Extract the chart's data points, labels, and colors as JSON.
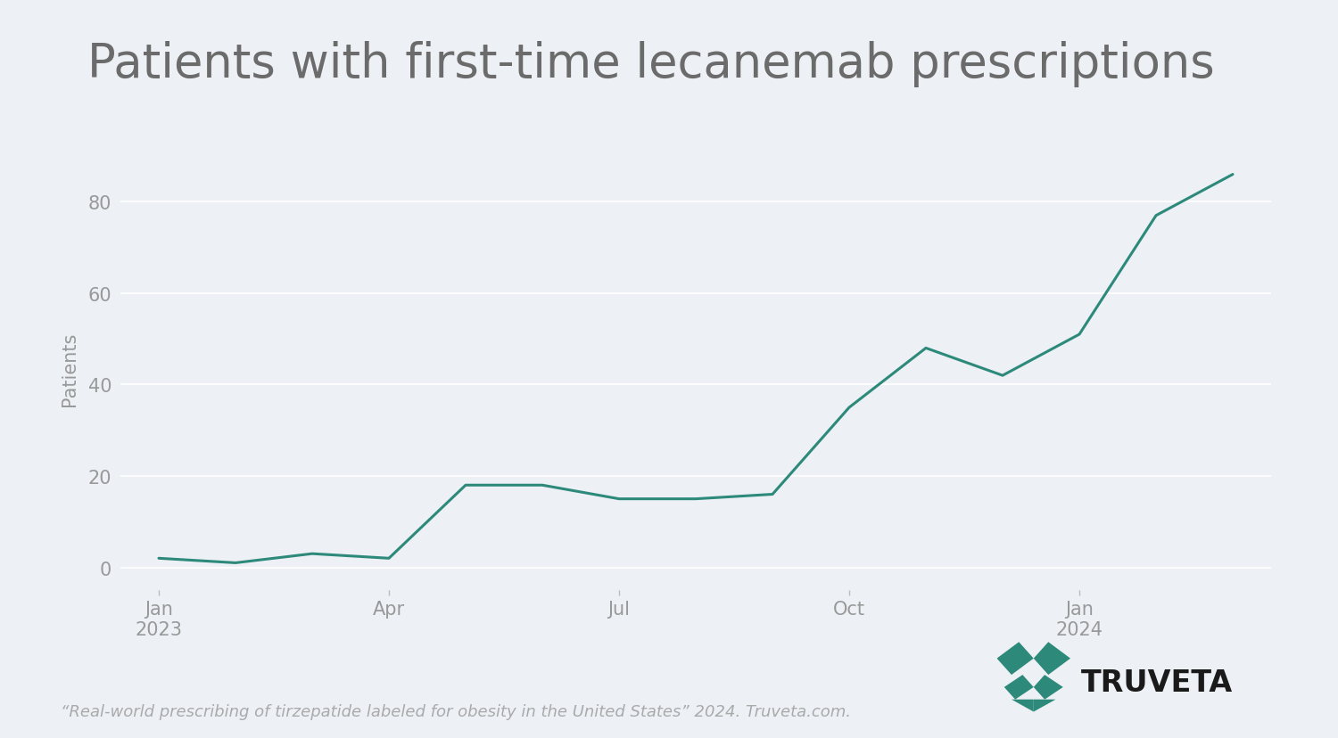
{
  "title": "Patients with first-time lecanemab prescriptions",
  "ylabel": "Patients",
  "background_color": "#edf0f5",
  "line_color": "#2d8a7a",
  "line_width": 2.2,
  "title_fontsize": 38,
  "title_color": "#6b6b6b",
  "ylabel_fontsize": 15,
  "tick_fontsize": 15,
  "tick_color": "#999999",
  "footnote": "“Real-world prescribing of tirzepatide labeled for obesity in the United States” 2024. Truveta.com.",
  "footnote_fontsize": 13,
  "footnote_color": "#aaaaaa",
  "x_months": [
    0,
    1,
    2,
    3,
    4,
    5,
    6,
    7,
    8,
    9,
    10,
    11,
    12,
    13,
    14
  ],
  "y_values": [
    2,
    1,
    3,
    2,
    18,
    18,
    15,
    15,
    16,
    35,
    48,
    42,
    51,
    77,
    86
  ],
  "x_tick_positions": [
    0,
    3,
    6,
    9,
    12
  ],
  "x_tick_labels_line1": [
    "Jan",
    "Apr",
    "Jul",
    "Oct",
    "Jan"
  ],
  "x_tick_labels_line2": [
    "2023",
    "",
    "",
    "",
    "2024"
  ],
  "ytick_values": [
    0,
    20,
    40,
    60,
    80
  ],
  "grid_color": "#ffffff",
  "truveta_color": "#2d8a7a",
  "truveta_text": "TRUVETA",
  "truveta_text_color": "#1a1a1a"
}
